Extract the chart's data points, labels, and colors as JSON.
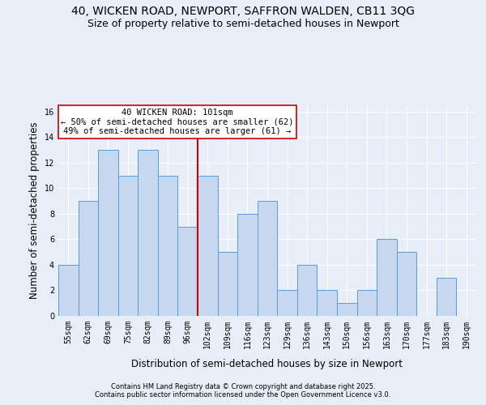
{
  "title1": "40, WICKEN ROAD, NEWPORT, SAFFRON WALDEN, CB11 3QG",
  "title2": "Size of property relative to semi-detached houses in Newport",
  "xlabel": "Distribution of semi-detached houses by size in Newport",
  "ylabel": "Number of semi-detached properties",
  "categories": [
    "55sqm",
    "62sqm",
    "69sqm",
    "75sqm",
    "82sqm",
    "89sqm",
    "96sqm",
    "102sqm",
    "109sqm",
    "116sqm",
    "123sqm",
    "129sqm",
    "136sqm",
    "143sqm",
    "150sqm",
    "156sqm",
    "163sqm",
    "170sqm",
    "177sqm",
    "183sqm",
    "190sqm"
  ],
  "values": [
    4,
    9,
    13,
    11,
    13,
    11,
    7,
    11,
    5,
    8,
    9,
    2,
    4,
    2,
    1,
    2,
    6,
    5,
    0,
    3,
    0
  ],
  "bar_color": "#c5d8f0",
  "bar_edge_color": "#5b9bd5",
  "vline_index": 7,
  "annotation_title": "40 WICKEN ROAD: 101sqm",
  "annotation_line1": "← 50% of semi-detached houses are smaller (62)",
  "annotation_line2": "49% of semi-detached houses are larger (61) →",
  "annotation_box_color": "#ffffff",
  "annotation_box_edge": "#cc0000",
  "vline_color": "#cc0000",
  "ylim": [
    0,
    16.5
  ],
  "yticks": [
    0,
    2,
    4,
    6,
    8,
    10,
    12,
    14,
    16
  ],
  "footnote1": "Contains HM Land Registry data © Crown copyright and database right 2025.",
  "footnote2": "Contains public sector information licensed under the Open Government Licence v3.0.",
  "bg_color": "#e8eef8",
  "plot_bg_color": "#e8eef8",
  "grid_color": "#ffffff",
  "title_fontsize": 10,
  "subtitle_fontsize": 9,
  "tick_fontsize": 7,
  "label_fontsize": 8.5,
  "annot_fontsize": 7.5,
  "footnote_fontsize": 6
}
